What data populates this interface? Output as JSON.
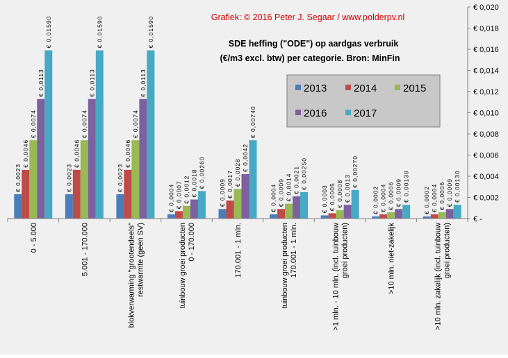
{
  "credit": "Grafiek:  © 2016 Peter J. Segaar / www.polderpv.nl",
  "colors": {
    "background": "#f0f0f0",
    "plot_background": "#f0f0f0",
    "credit": "#cc0000",
    "legend_background": "#c8c8c8",
    "series": [
      "#4a7ebb",
      "#be4b48",
      "#98b954",
      "#7d60a0",
      "#46aac5"
    ]
  },
  "chart_data": {
    "type": "bar",
    "title": "SDE heffing (\"ODE\")  op aardgas verbruik",
    "subtitle": "(€/m3 excl. btw) per categorie. Bron: MinFin",
    "xlabel": "",
    "ylabel": "",
    "ylim": [
      0,
      0.02
    ],
    "y_ticks": [
      0,
      0.002,
      0.004,
      0.006,
      0.008,
      0.01,
      0.012,
      0.014,
      0.016,
      0.018,
      0.02
    ],
    "y_tick_labels": [
      "€ -",
      "€ 0,002",
      "€ 0,004",
      "€ 0,006",
      "€ 0,008",
      "€ 0,010",
      "€ 0,012",
      "€ 0,014",
      "€ 0,016",
      "€ 0,018",
      "€ 0,020"
    ],
    "y_axis_position": "right",
    "grid": false,
    "legend_position": "center-right",
    "categories": [
      [
        "0 - 5.000"
      ],
      [
        "5.001 - 170.000"
      ],
      [
        "blokverwarming \"grootendeels\"",
        "restwarmte (geen SV)"
      ],
      [
        "tuinbouw groei producten",
        "0 - 170.000"
      ],
      [
        "170.001 - 1 mln."
      ],
      [
        "tuinbouw groei producten",
        "170.001 - 1 mln."
      ],
      [
        ">1 mln. - 10 mln. (incl. tuinbouw",
        "groei producten)"
      ],
      [
        ">10 mln. niet-zakelijk"
      ],
      [
        ">10 mln. zakelijk (incl. tuinbouw",
        "groei producten)"
      ]
    ],
    "series": [
      {
        "name": "2013",
        "values": [
          0.0023,
          0.0023,
          0.0023,
          0.0004,
          0.0009,
          0.0004,
          0.0003,
          0.0002,
          0.0002
        ],
        "labels": [
          "€ 0,0023",
          "€ 0,0023",
          "€ 0,0023",
          "€ 0,0004",
          "€ 0,0009",
          "€ 0,0004",
          "€ 0,0003",
          "€ 0,0002",
          "€ 0,0002"
        ]
      },
      {
        "name": "2014",
        "values": [
          0.0046,
          0.0046,
          0.0046,
          0.0007,
          0.0017,
          0.0009,
          0.0005,
          0.0004,
          0.0004
        ],
        "labels": [
          "€ 0,0046",
          "€ 0,0046",
          "€ 0,0046",
          "€ 0,0007",
          "€ 0,0017",
          "€ 0,0009",
          "€ 0,0005",
          "€ 0,0004",
          "€ 0,0004"
        ]
      },
      {
        "name": "2015",
        "values": [
          0.0074,
          0.0074,
          0.0074,
          0.0012,
          0.0028,
          0.0014,
          0.0008,
          0.0006,
          0.0006
        ],
        "labels": [
          "€ 0,0074",
          "€ 0,0074",
          "€ 0,0074",
          "€ 0,0012",
          "€ 0,0028",
          "€ 0,0014",
          "€ 0,0008",
          "€ 0,0006",
          "€ 0,0006"
        ]
      },
      {
        "name": "2016",
        "values": [
          0.0113,
          0.0113,
          0.0113,
          0.0018,
          0.0042,
          0.0021,
          0.0013,
          0.0009,
          0.0009
        ],
        "labels": [
          "€ 0,0113",
          "€ 0,0113",
          "€ 0,0113",
          "€ 0,0018",
          "€ 0,0042",
          "€ 0,0021",
          "€ 0,0013",
          "€ 0,0009",
          "€ 0,0009"
        ]
      },
      {
        "name": "2017",
        "values": [
          0.0159,
          0.0159,
          0.0159,
          0.0026,
          0.0074,
          0.0025,
          0.0027,
          0.0013,
          0.0013
        ],
        "labels": [
          "€ 0,01590",
          "€ 0,01590",
          "€ 0,01590",
          "€ 0,00260",
          "€ 0,00740",
          "€ 0,00250",
          "€ 0,00270",
          "€ 0,00130",
          "€ 0,00130"
        ]
      }
    ]
  }
}
